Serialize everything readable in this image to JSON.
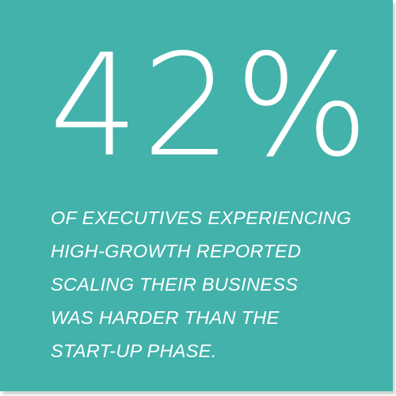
{
  "stat": {
    "value": "42%",
    "caption_lines": [
      "OF EXECUTIVES EXPERIENCING",
      "HIGH-GROWTH REPORTED",
      "SCALING THEIR BUSINESS",
      "WAS HARDER THAN THE",
      "START-UP PHASE."
    ]
  },
  "colors": {
    "card_background": "#43b2ab",
    "text": "#ffffff",
    "page_background": "#ffffff"
  }
}
